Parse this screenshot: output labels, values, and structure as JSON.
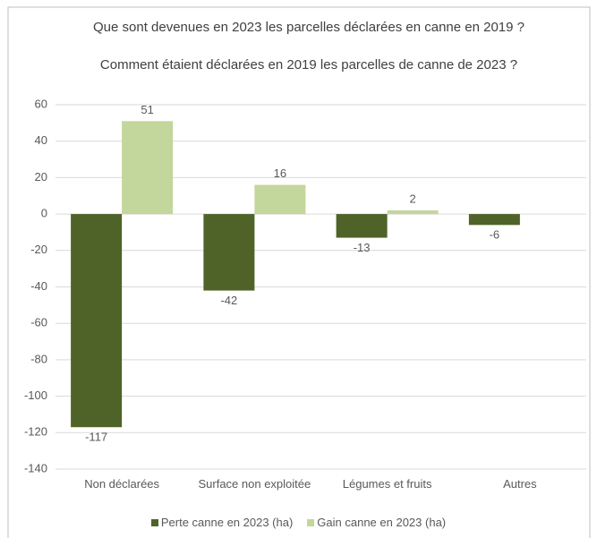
{
  "chart_data": {
    "type": "bar",
    "title": "Que sont devenues en 2023 les parcelles déclarées en canne en 2019 ?",
    "subtitle": "Comment étaient déclarées en 2019 les parcelles de canne de 2023 ?",
    "categories": [
      "Non déclarées",
      "Surface non exploitée",
      "Légumes et fruits",
      "Autres"
    ],
    "series": [
      {
        "name": "Perte canne en 2023 (ha)",
        "color": "#4f6228",
        "values": [
          -117,
          -42,
          -13,
          -6
        ]
      },
      {
        "name": "Gain canne en 2023 (ha)",
        "color": "#c3d69b",
        "values": [
          51,
          16,
          2,
          null
        ]
      }
    ],
    "ylim": [
      -140,
      60
    ],
    "yticks": [
      -140,
      -120,
      -100,
      -80,
      -60,
      -40,
      -20,
      0,
      20,
      40,
      60
    ],
    "grid": true,
    "legend": "bottom"
  }
}
